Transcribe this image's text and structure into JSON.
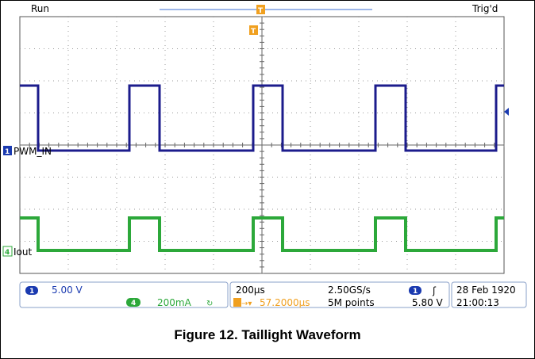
{
  "header": {
    "run_label": "Run",
    "trig_label": "Trig'd",
    "trigger_marker": "T"
  },
  "channels": {
    "ch1": {
      "number": "1",
      "label": "PWM_IN",
      "color": "#1c1c8c",
      "scale": "5.00 V"
    },
    "ch4": {
      "number": "4",
      "label": "Iout",
      "color": "#2ca83a",
      "scale": "200mA",
      "bw_icon": "bandwidth-limit-icon"
    }
  },
  "readout": {
    "timebase": "200µs",
    "sample_rate": "2.50GS/s",
    "trigger_offset": "57.2000µs",
    "record_length": "5M points",
    "trigger_channel": "1",
    "trigger_level": "5.80 V",
    "date": "28 Feb  1920",
    "time": "21:00:13",
    "trigger_slope_icon": "rising-edge-icon"
  },
  "colors": {
    "ch1": "#1c1c8c",
    "ch4": "#2ca83a",
    "trigger": "#f0a020",
    "grid": "#9a9a9a",
    "badge": "#1a3ab0"
  },
  "caption": "Figure 12. Taillight Waveform"
}
